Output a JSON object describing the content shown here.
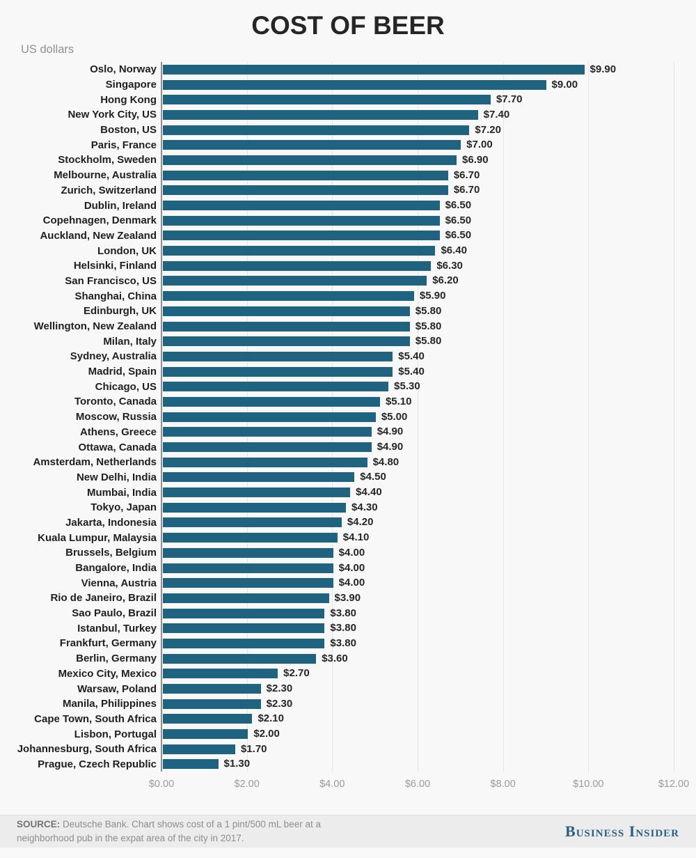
{
  "title": "COST OF BEER",
  "subtitle": "US dollars",
  "chart_data": {
    "type": "bar",
    "orientation": "horizontal",
    "title": "COST OF BEER",
    "units_label": "US dollars",
    "value_prefix": "$",
    "xlim": [
      0,
      12
    ],
    "x_ticks": [
      "$0.00",
      "$2.00",
      "$4.00",
      "$6.00",
      "$8.00",
      "$10.00",
      "$12.00"
    ],
    "grid": true,
    "bar_color": "#206380",
    "categories": [
      "Oslo, Norway",
      "Singapore",
      "Hong Kong",
      "New York City, US",
      "Boston, US",
      "Paris, France",
      "Stockholm, Sweden",
      "Melbourne, Australia",
      "Zurich, Switzerland",
      "Dublin, Ireland",
      "Copehnagen, Denmark",
      "Auckland, New Zealand",
      "London, UK",
      "Helsinki, Finland",
      "San Francisco, US",
      "Shanghai, China",
      "Edinburgh, UK",
      "Wellington, New Zealand",
      "Milan, Italy",
      "Sydney, Australia",
      "Madrid, Spain",
      "Chicago, US",
      "Toronto, Canada",
      "Moscow, Russia",
      "Athens, Greece",
      "Ottawa, Canada",
      "Amsterdam, Netherlands",
      "New Delhi, India",
      "Mumbai, India",
      "Tokyo, Japan",
      "Jakarta, Indonesia",
      "Kuala Lumpur, Malaysia",
      "Brussels, Belgium",
      "Bangalore, India",
      "Vienna, Austria",
      "Rio de Janeiro, Brazil",
      "Sao Paulo, Brazil",
      "Istanbul, Turkey",
      "Frankfurt, Germany",
      "Berlin, Germany",
      "Mexico City, Mexico",
      "Warsaw, Poland",
      "Manila, Philippines",
      "Cape Town, South Africa",
      "Lisbon, Portugal",
      "Johannesburg, South Africa",
      "Prague, Czech Republic"
    ],
    "values": [
      9.9,
      9.0,
      7.7,
      7.4,
      7.2,
      7.0,
      6.9,
      6.7,
      6.7,
      6.5,
      6.5,
      6.5,
      6.4,
      6.3,
      6.2,
      5.9,
      5.8,
      5.8,
      5.8,
      5.4,
      5.4,
      5.3,
      5.1,
      5.0,
      4.9,
      4.9,
      4.8,
      4.5,
      4.4,
      4.3,
      4.2,
      4.1,
      4.0,
      4.0,
      4.0,
      3.9,
      3.8,
      3.8,
      3.8,
      3.6,
      2.7,
      2.3,
      2.3,
      2.1,
      2.0,
      1.7,
      1.3
    ]
  },
  "footer": {
    "source_label": "SOURCE:",
    "source_text": " Deutsche Bank. Chart shows cost of a 1 pint/500 mL beer at a neighborhood pub in the expat area of the city in 2017.",
    "brand": "Business Insider"
  }
}
